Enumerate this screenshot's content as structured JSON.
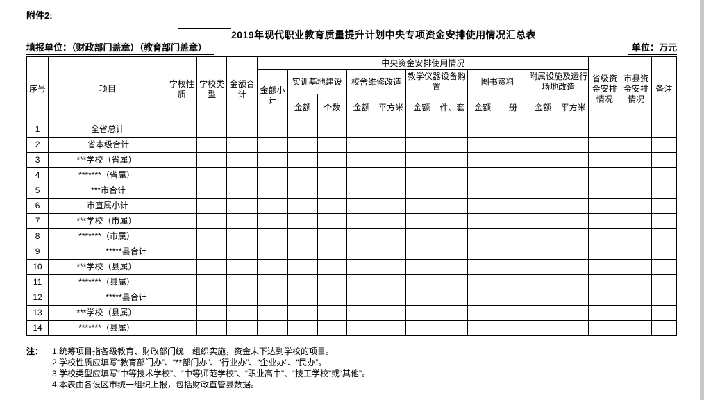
{
  "page": {
    "attachment_label": "附件2:",
    "title": "2019年现代职业教育质量提升计划中央专项资金安排使用情况汇总表",
    "reporting_unit_label": "填报单位：（财政部门盖章）（教育部门盖章）",
    "unit_label": "单位：万元"
  },
  "table": {
    "header": {
      "seq": "序号",
      "project": "项目",
      "school_nature": "学校性质",
      "school_type": "学校类型",
      "total_amount": "金额合计",
      "central_group": "中央资金安排使用情况",
      "subtotal": "金额小计",
      "groups": [
        {
          "label": "实训基地建设",
          "cols": [
            "金额",
            "个数"
          ]
        },
        {
          "label": "校舍维修改造",
          "cols": [
            "金额",
            "平方米"
          ]
        },
        {
          "label": "教学仪器设备购置",
          "cols": [
            "金额",
            "件、套"
          ]
        },
        {
          "label": "图书资料",
          "cols": [
            "金额",
            "册"
          ]
        },
        {
          "label": "附属设施及运行场地改造",
          "cols": [
            "金额",
            "平方米"
          ]
        }
      ],
      "provincial": "省级资金安排情况",
      "city_county": "市县资金安排情况",
      "remarks": "备注"
    },
    "rows": [
      {
        "seq": "1",
        "project": "全省总计",
        "align": "center"
      },
      {
        "seq": "2",
        "project": "省本级合计",
        "align": "left"
      },
      {
        "seq": "3",
        "project": "***学校（省属）",
        "align": "right"
      },
      {
        "seq": "4",
        "project": "*******（省属）",
        "align": "right"
      },
      {
        "seq": "5",
        "project": "***市合计",
        "align": "left"
      },
      {
        "seq": "6",
        "project": "市直属小计",
        "align": "center"
      },
      {
        "seq": "7",
        "project": "***学校（市属）",
        "align": "right"
      },
      {
        "seq": "8",
        "project": "*******（市属）",
        "align": "right"
      },
      {
        "seq": "9",
        "project": "*****县合计",
        "align": "indent"
      },
      {
        "seq": "10",
        "project": "***学校（县属）",
        "align": "right"
      },
      {
        "seq": "11",
        "project": "*******（县属）",
        "align": "right"
      },
      {
        "seq": "12",
        "project": "*****县合计",
        "align": "indent"
      },
      {
        "seq": "13",
        "project": "***学校（县属）",
        "align": "right"
      },
      {
        "seq": "14",
        "project": "*******（县属）",
        "align": "right"
      }
    ],
    "empty_cols_per_row": 17
  },
  "notes": {
    "label": "注：",
    "items": [
      "1.统筹项目指各级教育、财政部门统一组织实施，资金未下达到学校的项目。",
      "2.学校性质应填写“教育部门办”、“**部门办”、“行业办”、“企业办”、“民办”。",
      "3.学校类型应填写“中等技术学校”、“中等师范学校”、“职业高中”、“技工学校”或“其他”。",
      "4.本表由各设区市统一组织上报，包括财政直管县数据。"
    ]
  }
}
